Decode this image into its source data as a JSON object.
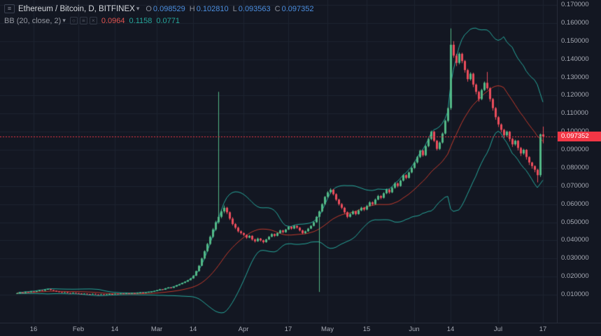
{
  "chart_header": {
    "symbol_title": "Ethereum / Bitcoin, D, BITFINEX",
    "ohlc": {
      "o_label": "O",
      "o": "0.098529",
      "h_label": "H",
      "h": "0.102810",
      "l_label": "L",
      "l": "0.093563",
      "c_label": "C",
      "c": "0.097352"
    },
    "indicator": {
      "label": "BB (20, close, 2)",
      "values": [
        "0.0964",
        "0.1158",
        "0.0771"
      ]
    }
  },
  "price_scale": {
    "labels": [
      "0.170000",
      "0.160000",
      "0.150000",
      "0.140000",
      "0.130000",
      "0.120000",
      "0.110000",
      "0.100000",
      "0.090000",
      "0.080000",
      "0.070000",
      "0.060000",
      "0.050000",
      "0.040000",
      "0.030000",
      "0.020000",
      "0.010000"
    ],
    "last_price": 0.097352,
    "last_price_label": "0.097352"
  },
  "colors": {
    "background": "#131722",
    "grid": "#1d2330",
    "up": "#53b987",
    "down": "#eb4d5c",
    "bb_band": "#26a69a",
    "bb_basis": "#c0392b",
    "axis_text": "#a5a9b3",
    "title_text": "#d5d8dd",
    "ohlc_label": "#8a8e99",
    "ohlc_value": "#4c8fe0",
    "indicator_text": "#9598a1",
    "indicator_basis_value": "#e0534f",
    "indicator_band_value": "#26a69a",
    "price_line": "#f23645",
    "badge_bg": "#f23645",
    "badge_text": "#ffffff",
    "axis_border": "#262b38",
    "icon": "#5a5f6b"
  },
  "chart_data": {
    "type": "candlestick",
    "title": "Ethereum / Bitcoin, D, BITFINEX",
    "symbol": "Ethereum / Bitcoin",
    "interval": "D",
    "exchange": "BITFINEX",
    "ylim": [
      0.01,
      0.17
    ],
    "y_tick_step": 0.01,
    "grid": true,
    "last_close": 0.097352,
    "indicators": [
      {
        "type": "bollinger",
        "length": 20,
        "source": "close",
        "mult": 2,
        "last_values": {
          "basis": 0.0964,
          "upper": 0.1158,
          "lower": 0.0771
        }
      }
    ],
    "x_ticks": [
      {
        "index": 6,
        "label": "16"
      },
      {
        "index": 22,
        "label": "Feb"
      },
      {
        "index": 35,
        "label": "14"
      },
      {
        "index": 50,
        "label": "Mar"
      },
      {
        "index": 63,
        "label": "14"
      },
      {
        "index": 81,
        "label": "Apr"
      },
      {
        "index": 97,
        "label": "17"
      },
      {
        "index": 111,
        "label": "May"
      },
      {
        "index": 125,
        "label": "15"
      },
      {
        "index": 142,
        "label": "Jun"
      },
      {
        "index": 155,
        "label": "14"
      },
      {
        "index": 172,
        "label": "Jul"
      },
      {
        "index": 188,
        "label": "17"
      }
    ],
    "ohlc_format": [
      "open",
      "high",
      "low",
      "close"
    ],
    "candles": [
      [
        0.0106,
        0.011,
        0.0104,
        0.0108
      ],
      [
        0.0108,
        0.0114,
        0.0107,
        0.0112
      ],
      [
        0.0112,
        0.0113,
        0.0108,
        0.011
      ],
      [
        0.011,
        0.0117,
        0.0109,
        0.0115
      ],
      [
        0.0115,
        0.0116,
        0.0111,
        0.0113
      ],
      [
        0.0113,
        0.012,
        0.0112,
        0.0118
      ],
      [
        0.0118,
        0.0119,
        0.0114,
        0.0116
      ],
      [
        0.0116,
        0.0122,
        0.0115,
        0.012
      ],
      [
        0.012,
        0.0127,
        0.0119,
        0.0125
      ],
      [
        0.0125,
        0.0126,
        0.012,
        0.0122
      ],
      [
        0.0122,
        0.013,
        0.0121,
        0.0128
      ],
      [
        0.0128,
        0.0134,
        0.0127,
        0.0131
      ],
      [
        0.0131,
        0.0132,
        0.0124,
        0.0126
      ],
      [
        0.0126,
        0.0127,
        0.012,
        0.0122
      ],
      [
        0.0122,
        0.0123,
        0.0116,
        0.0118
      ],
      [
        0.0118,
        0.0119,
        0.0113,
        0.0115
      ],
      [
        0.0115,
        0.0116,
        0.011,
        0.0112
      ],
      [
        0.0112,
        0.0116,
        0.0111,
        0.0114
      ],
      [
        0.0114,
        0.0115,
        0.0108,
        0.011
      ],
      [
        0.011,
        0.0111,
        0.0106,
        0.0108
      ],
      [
        0.0108,
        0.0113,
        0.0107,
        0.0111
      ],
      [
        0.0111,
        0.0112,
        0.0107,
        0.0109
      ],
      [
        0.0109,
        0.011,
        0.0105,
        0.0107
      ],
      [
        0.0107,
        0.0108,
        0.0103,
        0.0105
      ],
      [
        0.0105,
        0.0108,
        0.0104,
        0.0106
      ],
      [
        0.0106,
        0.0107,
        0.0102,
        0.0104
      ],
      [
        0.0104,
        0.0105,
        0.0101,
        0.0103
      ],
      [
        0.0103,
        0.0107,
        0.0102,
        0.0105
      ],
      [
        0.0105,
        0.0106,
        0.01,
        0.0102
      ],
      [
        0.0102,
        0.0103,
        0.0099,
        0.0101
      ],
      [
        0.0101,
        0.0105,
        0.01,
        0.0103
      ],
      [
        0.0103,
        0.0104,
        0.0098,
        0.01
      ],
      [
        0.01,
        0.0104,
        0.0099,
        0.0102
      ],
      [
        0.0102,
        0.0106,
        0.0101,
        0.0104
      ],
      [
        0.0104,
        0.0105,
        0.0101,
        0.0103
      ],
      [
        0.0103,
        0.0108,
        0.0102,
        0.0106
      ],
      [
        0.0106,
        0.0107,
        0.0103,
        0.0105
      ],
      [
        0.0105,
        0.0109,
        0.0104,
        0.0107
      ],
      [
        0.0107,
        0.0108,
        0.0104,
        0.0106
      ],
      [
        0.0106,
        0.011,
        0.0105,
        0.0108
      ],
      [
        0.0108,
        0.0109,
        0.0105,
        0.0107
      ],
      [
        0.0107,
        0.0111,
        0.0106,
        0.0109
      ],
      [
        0.0109,
        0.011,
        0.0106,
        0.0108
      ],
      [
        0.0108,
        0.0112,
        0.0107,
        0.011
      ],
      [
        0.011,
        0.0114,
        0.0109,
        0.0112
      ],
      [
        0.0112,
        0.0113,
        0.0109,
        0.0111
      ],
      [
        0.0111,
        0.0115,
        0.011,
        0.0113
      ],
      [
        0.0113,
        0.0117,
        0.0112,
        0.0115
      ],
      [
        0.0115,
        0.0119,
        0.0114,
        0.0117
      ],
      [
        0.0117,
        0.0122,
        0.0116,
        0.012
      ],
      [
        0.012,
        0.0127,
        0.0119,
        0.0125
      ],
      [
        0.0125,
        0.0132,
        0.0124,
        0.013
      ],
      [
        0.013,
        0.0131,
        0.0126,
        0.0128
      ],
      [
        0.0128,
        0.0137,
        0.0127,
        0.0135
      ],
      [
        0.0135,
        0.0142,
        0.0134,
        0.014
      ],
      [
        0.014,
        0.0141,
        0.0136,
        0.0138
      ],
      [
        0.0138,
        0.0147,
        0.0137,
        0.0145
      ],
      [
        0.0145,
        0.0154,
        0.0144,
        0.0152
      ],
      [
        0.0152,
        0.016,
        0.0151,
        0.0158
      ],
      [
        0.0158,
        0.0167,
        0.0157,
        0.0165
      ],
      [
        0.0165,
        0.0174,
        0.0164,
        0.0172
      ],
      [
        0.0172,
        0.0182,
        0.0171,
        0.018
      ],
      [
        0.018,
        0.0192,
        0.0179,
        0.019
      ],
      [
        0.019,
        0.0208,
        0.0188,
        0.0205
      ],
      [
        0.0205,
        0.0233,
        0.0203,
        0.023
      ],
      [
        0.023,
        0.0264,
        0.0228,
        0.026
      ],
      [
        0.026,
        0.0305,
        0.0258,
        0.03
      ],
      [
        0.03,
        0.0345,
        0.0296,
        0.034
      ],
      [
        0.034,
        0.0386,
        0.0336,
        0.038
      ],
      [
        0.038,
        0.0427,
        0.0375,
        0.042
      ],
      [
        0.042,
        0.0468,
        0.0414,
        0.046
      ],
      [
        0.046,
        0.0508,
        0.0452,
        0.05
      ],
      [
        0.05,
        0.122,
        0.0492,
        0.053
      ],
      [
        0.053,
        0.057,
        0.0522,
        0.056
      ],
      [
        0.056,
        0.0592,
        0.055,
        0.058
      ],
      [
        0.058,
        0.0585,
        0.0545,
        0.0555
      ],
      [
        0.0555,
        0.056,
        0.0512,
        0.052
      ],
      [
        0.052,
        0.0528,
        0.0482,
        0.049
      ],
      [
        0.049,
        0.0495,
        0.0462,
        0.047
      ],
      [
        0.047,
        0.0476,
        0.0443,
        0.045
      ],
      [
        0.045,
        0.0455,
        0.0432,
        0.044
      ],
      [
        0.044,
        0.0444,
        0.0424,
        0.043
      ],
      [
        0.043,
        0.0433,
        0.0408,
        0.0415
      ],
      [
        0.0415,
        0.043,
        0.0412,
        0.0425
      ],
      [
        0.0425,
        0.0428,
        0.0398,
        0.0405
      ],
      [
        0.0405,
        0.041,
        0.0388,
        0.0395
      ],
      [
        0.0395,
        0.0415,
        0.0392,
        0.041
      ],
      [
        0.041,
        0.0413,
        0.0394,
        0.04
      ],
      [
        0.04,
        0.0404,
        0.0383,
        0.039
      ],
      [
        0.039,
        0.0409,
        0.0387,
        0.0405
      ],
      [
        0.0405,
        0.0424,
        0.0402,
        0.042
      ],
      [
        0.042,
        0.0439,
        0.0417,
        0.0435
      ],
      [
        0.0435,
        0.0438,
        0.0419,
        0.0425
      ],
      [
        0.0425,
        0.0444,
        0.0422,
        0.044
      ],
      [
        0.044,
        0.0459,
        0.0437,
        0.0455
      ],
      [
        0.0455,
        0.0458,
        0.0439,
        0.0445
      ],
      [
        0.0445,
        0.0464,
        0.0442,
        0.046
      ],
      [
        0.046,
        0.0479,
        0.0457,
        0.0475
      ],
      [
        0.0475,
        0.0478,
        0.0459,
        0.0465
      ],
      [
        0.0465,
        0.0484,
        0.0462,
        0.048
      ],
      [
        0.048,
        0.0483,
        0.0464,
        0.047
      ],
      [
        0.047,
        0.0474,
        0.0449,
        0.0455
      ],
      [
        0.0455,
        0.0459,
        0.0434,
        0.044
      ],
      [
        0.044,
        0.0454,
        0.0436,
        0.045
      ],
      [
        0.045,
        0.0469,
        0.0447,
        0.0465
      ],
      [
        0.0465,
        0.0484,
        0.0462,
        0.048
      ],
      [
        0.048,
        0.0504,
        0.0477,
        0.05
      ],
      [
        0.05,
        0.0534,
        0.0497,
        0.053
      ],
      [
        0.053,
        0.0565,
        0.0115,
        0.056
      ],
      [
        0.056,
        0.0605,
        0.0555,
        0.06
      ],
      [
        0.06,
        0.0645,
        0.0594,
        0.064
      ],
      [
        0.064,
        0.0672,
        0.0634,
        0.0665
      ],
      [
        0.0665,
        0.0688,
        0.0658,
        0.068
      ],
      [
        0.068,
        0.0684,
        0.0648,
        0.0655
      ],
      [
        0.0655,
        0.066,
        0.0617,
        0.0625
      ],
      [
        0.0625,
        0.063,
        0.0592,
        0.06
      ],
      [
        0.06,
        0.0606,
        0.0572,
        0.058
      ],
      [
        0.058,
        0.0585,
        0.0547,
        0.0555
      ],
      [
        0.0555,
        0.056,
        0.0522,
        0.053
      ],
      [
        0.053,
        0.0551,
        0.0526,
        0.0545
      ],
      [
        0.0545,
        0.0566,
        0.0541,
        0.056
      ],
      [
        0.056,
        0.0564,
        0.0538,
        0.0545
      ],
      [
        0.0545,
        0.0571,
        0.0542,
        0.0565
      ],
      [
        0.0565,
        0.0586,
        0.0561,
        0.058
      ],
      [
        0.058,
        0.0585,
        0.0562,
        0.057
      ],
      [
        0.057,
        0.0596,
        0.0566,
        0.059
      ],
      [
        0.059,
        0.0616,
        0.0586,
        0.061
      ],
      [
        0.061,
        0.0615,
        0.0592,
        0.06
      ],
      [
        0.06,
        0.0631,
        0.0596,
        0.0625
      ],
      [
        0.0625,
        0.0651,
        0.0621,
        0.0645
      ],
      [
        0.0645,
        0.065,
        0.0627,
        0.0635
      ],
      [
        0.0635,
        0.0666,
        0.0631,
        0.066
      ],
      [
        0.066,
        0.0686,
        0.0655,
        0.068
      ],
      [
        0.068,
        0.0685,
        0.0657,
        0.0665
      ],
      [
        0.0665,
        0.0696,
        0.0661,
        0.069
      ],
      [
        0.069,
        0.0721,
        0.0685,
        0.0715
      ],
      [
        0.0715,
        0.072,
        0.0692,
        0.07
      ],
      [
        0.07,
        0.0736,
        0.0696,
        0.073
      ],
      [
        0.073,
        0.0766,
        0.0725,
        0.076
      ],
      [
        0.076,
        0.0765,
        0.0737,
        0.0745
      ],
      [
        0.0745,
        0.0781,
        0.0741,
        0.0775
      ],
      [
        0.0775,
        0.0806,
        0.077,
        0.08
      ],
      [
        0.08,
        0.0836,
        0.0794,
        0.083
      ],
      [
        0.083,
        0.0866,
        0.0824,
        0.086
      ],
      [
        0.086,
        0.0901,
        0.0854,
        0.0895
      ],
      [
        0.0895,
        0.09,
        0.0862,
        0.087
      ],
      [
        0.087,
        0.0926,
        0.0865,
        0.092
      ],
      [
        0.092,
        0.0966,
        0.0914,
        0.096
      ],
      [
        0.096,
        0.1006,
        0.0953,
        0.1
      ],
      [
        0.1,
        0.1005,
        0.0942,
        0.095
      ],
      [
        0.095,
        0.0955,
        0.0896,
        0.0905
      ],
      [
        0.0905,
        0.0946,
        0.0899,
        0.094
      ],
      [
        0.094,
        0.0996,
        0.0934,
        0.099
      ],
      [
        0.099,
        0.1066,
        0.0984,
        0.106
      ],
      [
        0.106,
        0.1136,
        0.1052,
        0.113
      ],
      [
        0.113,
        0.157,
        0.112,
        0.148
      ],
      [
        0.148,
        0.15,
        0.1408,
        0.142
      ],
      [
        0.142,
        0.143,
        0.1362,
        0.138
      ],
      [
        0.138,
        0.1438,
        0.1372,
        0.143
      ],
      [
        0.143,
        0.1436,
        0.1378,
        0.139
      ],
      [
        0.139,
        0.1396,
        0.1326,
        0.134
      ],
      [
        0.134,
        0.1347,
        0.1276,
        0.129
      ],
      [
        0.129,
        0.1328,
        0.1282,
        0.132
      ],
      [
        0.132,
        0.1326,
        0.1246,
        0.126
      ],
      [
        0.126,
        0.1266,
        0.1206,
        0.122
      ],
      [
        0.122,
        0.1226,
        0.1166,
        0.118
      ],
      [
        0.118,
        0.1237,
        0.1174,
        0.123
      ],
      [
        0.123,
        0.1277,
        0.1224,
        0.127
      ],
      [
        0.127,
        0.133,
        0.1232,
        0.124
      ],
      [
        0.124,
        0.1246,
        0.1166,
        0.118
      ],
      [
        0.118,
        0.1186,
        0.1116,
        0.113
      ],
      [
        0.113,
        0.1136,
        0.1066,
        0.108
      ],
      [
        0.108,
        0.1086,
        0.1026,
        0.104
      ],
      [
        0.104,
        0.1046,
        0.0996,
        0.101
      ],
      [
        0.101,
        0.1016,
        0.0966,
        0.098
      ],
      [
        0.098,
        0.1006,
        0.0972,
        0.1
      ],
      [
        0.1,
        0.1004,
        0.0946,
        0.096
      ],
      [
        0.096,
        0.0966,
        0.0916,
        0.093
      ],
      [
        0.093,
        0.0956,
        0.0922,
        0.095
      ],
      [
        0.095,
        0.0954,
        0.0896,
        0.091
      ],
      [
        0.091,
        0.0916,
        0.0866,
        0.088
      ],
      [
        0.088,
        0.0906,
        0.0872,
        0.09
      ],
      [
        0.09,
        0.0904,
        0.0846,
        0.086
      ],
      [
        0.086,
        0.0864,
        0.0816,
        0.083
      ],
      [
        0.083,
        0.0834,
        0.0796,
        0.081
      ],
      [
        0.081,
        0.0814,
        0.0776,
        0.079
      ],
      [
        0.079,
        0.0795,
        0.072,
        0.076
      ],
      [
        0.076,
        0.099,
        0.075,
        0.0985
      ],
      [
        0.098529,
        0.10281,
        0.093563,
        0.097352
      ]
    ]
  }
}
